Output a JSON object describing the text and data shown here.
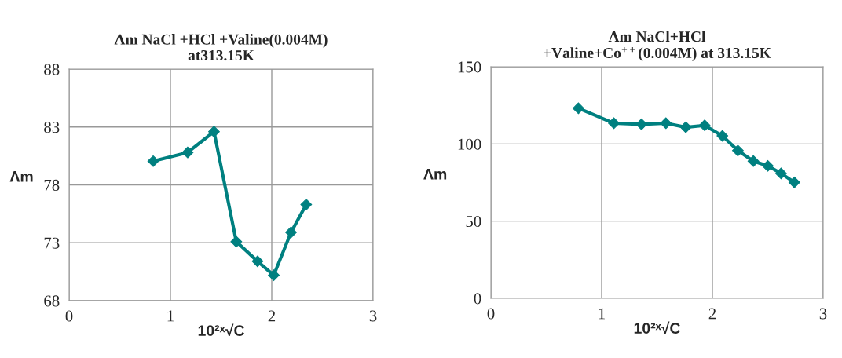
{
  "chart_data": [
    {
      "type": "line",
      "title": "Λm NaCl +HCl +Valine(0.004M)\nat313.15K",
      "xlabel": "10²ˣ√C",
      "ylabel": "Λm",
      "xlim": [
        0,
        3
      ],
      "xticks": [
        0,
        1,
        2,
        3
      ],
      "ylim": [
        68,
        88
      ],
      "yticks": [
        68,
        73,
        78,
        83,
        88
      ],
      "grid": true,
      "marker": "diamond",
      "line_style": "solid",
      "series": [
        {
          "color": "#008080",
          "x": [
            0.83,
            1.17,
            1.43,
            1.65,
            1.86,
            2.02,
            2.19,
            2.34
          ],
          "values": [
            80.05,
            80.8,
            82.6,
            73.1,
            71.4,
            70.2,
            73.9,
            76.3
          ]
        }
      ]
    },
    {
      "type": "line",
      "title": "Λm NaCl+HCl\n+Valine+Co$^{++}$(0.004M) at 313.15K",
      "xlabel": "10²ˣ√C",
      "ylabel": "Λm",
      "xlim": [
        0,
        3
      ],
      "xticks": [
        0,
        1,
        2,
        3
      ],
      "ylim": [
        0,
        150
      ],
      "yticks": [
        0,
        50,
        100,
        150
      ],
      "grid": true,
      "marker": "diamond",
      "line_style": "solid",
      "series": [
        {
          "color": "#008080",
          "x": [
            0.79,
            1.11,
            1.36,
            1.58,
            1.76,
            1.93,
            2.09,
            2.23,
            2.37,
            2.5,
            2.62,
            2.74
          ],
          "values": [
            123.1,
            113.4,
            112.7,
            113.4,
            110.8,
            112.0,
            105.2,
            95.7,
            88.9,
            85.8,
            80.9,
            75.1
          ]
        }
      ]
    }
  ]
}
